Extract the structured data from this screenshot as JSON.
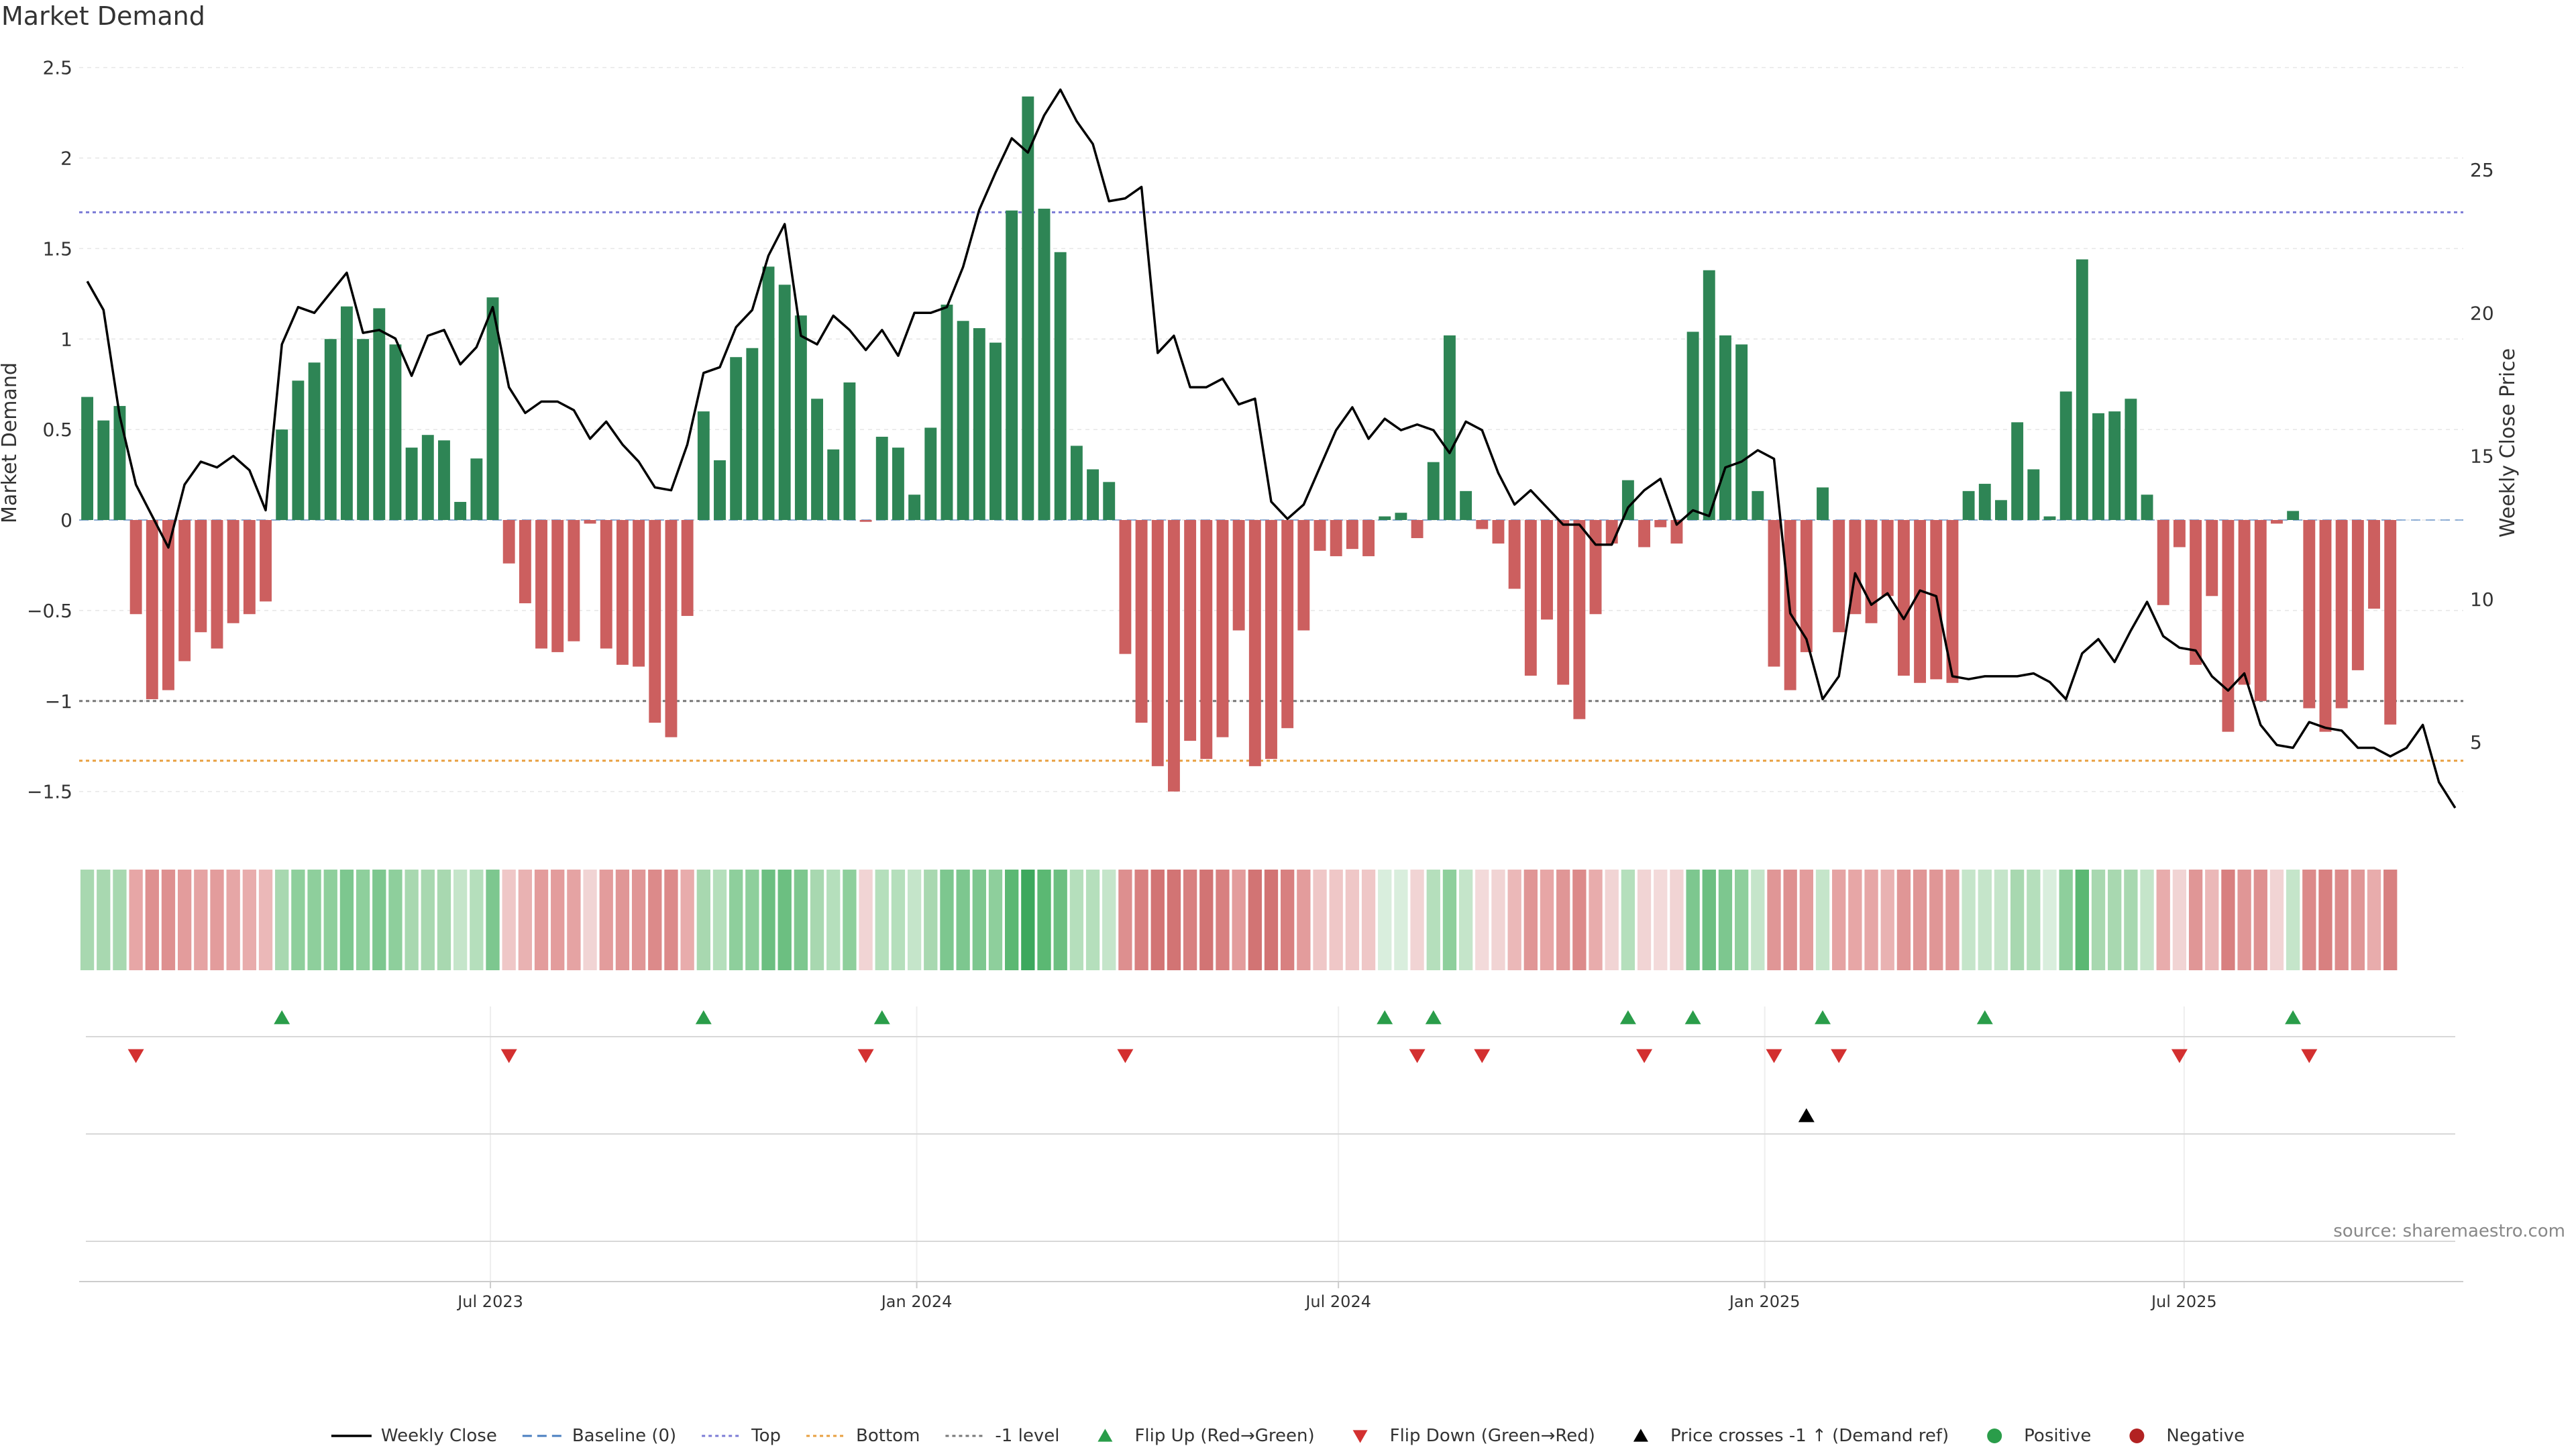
{
  "chart_data": {
    "type": "bar",
    "title": "Market Demand",
    "ylabel": "Market Demand",
    "y2label": "Weekly Close Price",
    "ylim": [
      -1.72,
      2.6
    ],
    "y2lim": [
      2.2,
      29.5
    ],
    "yticks": [
      2.5,
      2,
      1.5,
      1,
      0.5,
      0,
      -0.5,
      -1,
      -1.5
    ],
    "ytick_labels": [
      "2.5",
      "2",
      "1.5",
      "1",
      "0.5",
      "0",
      "−0.5",
      "−1",
      "−1.5"
    ],
    "y2ticks": [
      25,
      20,
      15,
      10,
      5
    ],
    "y2tick_labels": [
      "25",
      "20",
      "15",
      "10",
      "5"
    ],
    "x_date_range": [
      "2023-01-08",
      "2025-11-23"
    ],
    "xtick_dates": [
      "2023-07-01",
      "2024-01-01",
      "2024-07-01",
      "2025-01-01",
      "2025-07-01"
    ],
    "xtick_labels": [
      "Jul 2023",
      "Jan 2024",
      "Jul 2024",
      "Jan 2025",
      "Jul 2025"
    ],
    "levels": [
      {
        "name": "Top",
        "value": 1.7,
        "color": "#7b7bd6"
      },
      {
        "name": "-1 level",
        "value": -1.0,
        "color": "#777777"
      },
      {
        "name": "Bottom",
        "value": -1.33,
        "color": "#e8a040"
      }
    ],
    "demand": [
      0.68,
      0.55,
      0.63,
      -0.52,
      -0.99,
      -0.94,
      -0.78,
      -0.62,
      -0.71,
      -0.57,
      -0.52,
      -0.45,
      0.5,
      0.77,
      0.87,
      1.0,
      1.18,
      1.0,
      1.17,
      0.97,
      0.4,
      0.47,
      0.44,
      0.1,
      0.34,
      1.23,
      -0.24,
      -0.46,
      -0.71,
      -0.73,
      -0.67,
      -0.02,
      -0.71,
      -0.8,
      -0.81,
      -1.12,
      -1.2,
      -0.53,
      0.6,
      0.33,
      0.9,
      0.95,
      1.4,
      1.3,
      1.13,
      0.67,
      0.39,
      0.76,
      -0.01,
      0.46,
      0.4,
      0.14,
      0.51,
      1.19,
      1.1,
      1.06,
      0.98,
      1.71,
      2.34,
      1.72,
      1.48,
      0.41,
      0.28,
      0.21,
      -0.74,
      -1.12,
      -1.36,
      -1.5,
      -1.22,
      -1.32,
      -1.2,
      -0.61,
      -1.36,
      -1.32,
      -1.15,
      -0.61,
      -0.17,
      -0.2,
      -0.16,
      -0.2,
      0.02,
      0.04,
      -0.1,
      0.32,
      1.02,
      0.16,
      -0.05,
      -0.13,
      -0.38,
      -0.86,
      -0.55,
      -0.91,
      -1.1,
      -0.52,
      -0.13,
      0.22,
      -0.15,
      -0.04,
      -0.13,
      1.04,
      1.38,
      1.02,
      0.97,
      0.16,
      -0.81,
      -0.94,
      -0.73,
      0.18,
      -0.62,
      -0.52,
      -0.57,
      -0.42,
      -0.86,
      -0.9,
      -0.88,
      -0.9,
      0.16,
      0.2,
      0.11,
      0.54,
      0.28,
      0.02,
      0.71,
      1.44,
      0.59,
      0.6,
      0.67,
      0.14,
      -0.47,
      -0.15,
      -0.8,
      -0.42,
      -1.17,
      -0.91,
      -1.0,
      -0.02,
      0.05,
      -1.04,
      -1.17,
      -1.04,
      -0.83,
      -0.49,
      -1.13
    ],
    "close_points": [
      [
        0,
        21.1
      ],
      [
        1,
        20.1
      ],
      [
        2,
        16.4
      ],
      [
        3,
        14
      ],
      [
        4,
        12.9
      ],
      [
        5,
        11.8
      ],
      [
        6,
        14
      ],
      [
        7,
        14.8
      ],
      [
        8,
        14.6
      ],
      [
        9,
        15
      ],
      [
        10,
        14.5
      ],
      [
        11,
        13.1
      ],
      [
        12,
        18.9
      ],
      [
        13,
        20.2
      ],
      [
        14,
        20
      ],
      [
        15,
        20.7
      ],
      [
        16,
        21.4
      ],
      [
        17,
        19.3
      ],
      [
        18,
        19.4
      ],
      [
        19,
        19.1
      ],
      [
        20,
        17.8
      ],
      [
        21,
        19.2
      ],
      [
        22,
        19.4
      ],
      [
        23,
        18.2
      ],
      [
        24,
        18.8
      ],
      [
        25,
        20.2
      ],
      [
        26,
        17.4
      ],
      [
        27,
        16.5
      ],
      [
        28,
        16.9
      ],
      [
        29,
        16.9
      ],
      [
        30,
        16.6
      ],
      [
        31,
        15.6
      ],
      [
        32,
        16.2
      ],
      [
        33,
        15.4
      ],
      [
        34,
        14.8
      ],
      [
        35,
        13.9
      ],
      [
        36,
        13.8
      ],
      [
        37,
        15.4
      ],
      [
        38,
        17.9
      ],
      [
        39,
        18.1
      ],
      [
        40,
        19.5
      ],
      [
        41,
        20.1
      ],
      [
        42,
        22
      ],
      [
        43,
        23.1
      ],
      [
        44,
        19.2
      ],
      [
        45,
        18.9
      ],
      [
        46,
        19.9
      ],
      [
        47,
        19.4
      ],
      [
        48,
        18.7
      ],
      [
        49,
        19.4
      ],
      [
        50,
        18.5
      ],
      [
        51,
        20
      ],
      [
        52,
        20
      ],
      [
        53,
        20.2
      ],
      [
        54,
        21.6
      ],
      [
        55,
        23.6
      ],
      [
        56,
        24.9
      ],
      [
        57,
        26.1
      ],
      [
        58,
        25.6
      ],
      [
        59,
        26.9
      ],
      [
        60,
        27.8
      ],
      [
        61,
        26.7
      ],
      [
        62,
        25.9
      ],
      [
        63,
        23.9
      ],
      [
        64,
        24
      ],
      [
        65,
        24.4
      ],
      [
        66,
        18.6
      ],
      [
        67,
        19.2
      ],
      [
        68,
        17.4
      ],
      [
        69,
        17.4
      ],
      [
        70,
        17.7
      ],
      [
        71,
        16.8
      ],
      [
        72,
        17
      ],
      [
        73,
        13.4
      ],
      [
        74,
        12.8
      ],
      [
        75,
        13.3
      ],
      [
        76,
        14.6
      ],
      [
        77,
        15.9
      ],
      [
        78,
        16.7
      ],
      [
        79,
        15.6
      ],
      [
        80,
        16.3
      ],
      [
        81,
        15.9
      ],
      [
        82,
        16.1
      ],
      [
        83,
        15.9
      ],
      [
        84,
        15.1
      ],
      [
        85,
        16.2
      ],
      [
        86,
        15.9
      ],
      [
        87,
        14.4
      ],
      [
        88,
        13.3
      ],
      [
        89,
        13.8
      ],
      [
        90,
        13.2
      ],
      [
        91,
        12.6
      ],
      [
        92,
        12.6
      ],
      [
        93,
        11.9
      ],
      [
        94,
        11.9
      ],
      [
        95,
        13.2
      ],
      [
        96,
        13.8
      ],
      [
        97,
        14.2
      ],
      [
        98,
        12.6
      ],
      [
        99,
        13.1
      ],
      [
        100,
        12.9
      ],
      [
        101,
        14.6
      ],
      [
        102,
        14.8
      ],
      [
        103,
        15.2
      ],
      [
        104,
        14.9
      ],
      [
        105,
        9.5
      ],
      [
        106,
        8.6
      ],
      [
        107,
        6.5
      ],
      [
        108,
        7.3
      ],
      [
        109,
        10.9
      ],
      [
        110,
        9.8
      ],
      [
        111,
        10.2
      ],
      [
        112,
        9.3
      ],
      [
        113,
        10.3
      ],
      [
        114,
        10.1
      ],
      [
        115,
        7.3
      ],
      [
        116,
        7.2
      ],
      [
        117,
        7.3
      ],
      [
        118,
        7.3
      ],
      [
        119,
        7.3
      ],
      [
        120,
        7.4
      ],
      [
        121,
        7.1
      ],
      [
        122,
        6.5
      ],
      [
        123,
        8.1
      ],
      [
        124,
        8.6
      ],
      [
        125,
        7.8
      ],
      [
        126,
        8.9
      ],
      [
        127,
        9.9
      ],
      [
        128,
        8.7
      ],
      [
        129,
        8.3
      ],
      [
        130,
        8.2
      ],
      [
        131,
        7.3
      ],
      [
        132,
        6.8
      ],
      [
        133,
        7.4
      ],
      [
        134,
        5.6
      ],
      [
        135,
        4.9
      ],
      [
        136,
        4.8
      ],
      [
        137,
        5.7
      ],
      [
        138,
        5.5
      ],
      [
        139,
        5.4
      ],
      [
        140,
        4.8
      ],
      [
        141,
        4.8
      ],
      [
        142,
        4.5
      ],
      [
        143,
        4.8
      ],
      [
        144,
        5.6
      ],
      [
        145,
        3.6
      ],
      [
        146,
        2.7
      ]
    ],
    "heatstrip_colors": [
      "#a8d8b0",
      "#a8d8b0",
      "#a8d8b0",
      "#e7a6a6",
      "#de9090",
      "#de9090",
      "#e39c9c",
      "#e5a3a3",
      "#e39c9c",
      "#e6a6a6",
      "#e8acac",
      "#ebb8b8",
      "#a8d8b0",
      "#8ecf9c",
      "#8ecf9c",
      "#8ecf9c",
      "#7dc78f",
      "#8ecf9c",
      "#7dc78f",
      "#8ecf9c",
      "#a8d8b0",
      "#a8d8b0",
      "#a8d8b0",
      "#c5e5ca",
      "#b5dfbc",
      "#7dc78f",
      "#efc7c7",
      "#e9b2b2",
      "#e39c9c",
      "#e39c9c",
      "#e5a3a3",
      "#f1d4d4",
      "#e39c9c",
      "#e09696",
      "#e09696",
      "#dc8a8a",
      "#dc8a8a",
      "#e8acac",
      "#a8d8b0",
      "#b5dfbc",
      "#8ecf9c",
      "#8ecf9c",
      "#6cbf81",
      "#6cbf81",
      "#7dc78f",
      "#a8d8b0",
      "#b5dfbc",
      "#8ecf9c",
      "#f1d4d4",
      "#b5dfbc",
      "#b5dfbc",
      "#c5e5ca",
      "#a8d8b0",
      "#7dc78f",
      "#7dc78f",
      "#7dc78f",
      "#8ecf9c",
      "#5bb873",
      "#3da85d",
      "#5bb873",
      "#6cbf81",
      "#b5dfbc",
      "#b5dfbc",
      "#c5e5ca",
      "#dd8f8f",
      "#d88080",
      "#d27474",
      "#d27474",
      "#d88080",
      "#d27474",
      "#d88080",
      "#e39c9c",
      "#d27474",
      "#d27474",
      "#d88080",
      "#e39c9c",
      "#efc7c7",
      "#efc7c7",
      "#efc7c7",
      "#efc7c7",
      "#d9eedd",
      "#d9eedd",
      "#f1d4d4",
      "#b5dfbc",
      "#8ecf9c",
      "#c5e5ca",
      "#f3dada",
      "#f1d4d4",
      "#ebb8b8",
      "#e09696",
      "#e7a6a6",
      "#e09696",
      "#dc8a8a",
      "#e8acac",
      "#f1d4d4",
      "#b5dfbc",
      "#f1d4d4",
      "#f3dada",
      "#f1d4d4",
      "#7dc78f",
      "#6cbf81",
      "#7dc78f",
      "#8ecf9c",
      "#c5e5ca",
      "#e09696",
      "#de9090",
      "#e39c9c",
      "#c5e5ca",
      "#e5a3a3",
      "#e7a6a6",
      "#e6a6a6",
      "#e9b2b2",
      "#e09696",
      "#e09696",
      "#e09696",
      "#e09696",
      "#c5e5ca",
      "#c5e5ca",
      "#c5e5ca",
      "#a8d8b0",
      "#b5dfbc",
      "#d9eedd",
      "#8ecf9c",
      "#5bb873",
      "#a8d8b0",
      "#a8d8b0",
      "#a8d8b0",
      "#c5e5ca",
      "#e8acac",
      "#f1d4d4",
      "#e09696",
      "#ebb8b8",
      "#d88080",
      "#e09696",
      "#de9090",
      "#f1d4d4",
      "#c5e5ca",
      "#dc8a8a",
      "#d88080",
      "#dc8a8a",
      "#e09696",
      "#e8acac",
      "#d88080"
    ],
    "flip_up_weeks": [
      12,
      38,
      49,
      80,
      83,
      95,
      99,
      107,
      117,
      136
    ],
    "flip_down_weeks": [
      3,
      26,
      48,
      64,
      82,
      86,
      96,
      104,
      108,
      129,
      137
    ],
    "price_cross_weeks": [
      106
    ],
    "week_count": 147,
    "week_step_days": 7,
    "legend_position": "bottom",
    "legend": [
      {
        "label": "Weekly Close",
        "kind": "line",
        "color": "#000000"
      },
      {
        "label": "Baseline (0)",
        "kind": "dash",
        "color": "#4a7fc0"
      },
      {
        "label": "Top",
        "kind": "dot",
        "color": "#7b7bd6"
      },
      {
        "label": "Bottom",
        "kind": "dot",
        "color": "#e8a040"
      },
      {
        "label": "-1 level",
        "kind": "dot",
        "color": "#777777"
      },
      {
        "label": "Flip Up (Red→Green)",
        "kind": "tri-up",
        "color": "#2a9d4a"
      },
      {
        "label": "Flip Down (Green→Red)",
        "kind": "tri-down",
        "color": "#d33030"
      },
      {
        "label": "Price crosses -1 ↑ (Demand ref)",
        "kind": "tri-up",
        "color": "#000000"
      },
      {
        "label": "Positive",
        "kind": "circle",
        "color": "#2a9d4a"
      },
      {
        "label": "Negative",
        "kind": "circle",
        "color": "#b22222"
      }
    ],
    "source": "source: sharemaestro.com"
  },
  "colors": {
    "positive_bar": "#2e8555",
    "negative_bar": "#cc5f5f",
    "grid": "#e6e6e6",
    "axis": "#cccccc",
    "text": "#333333"
  }
}
